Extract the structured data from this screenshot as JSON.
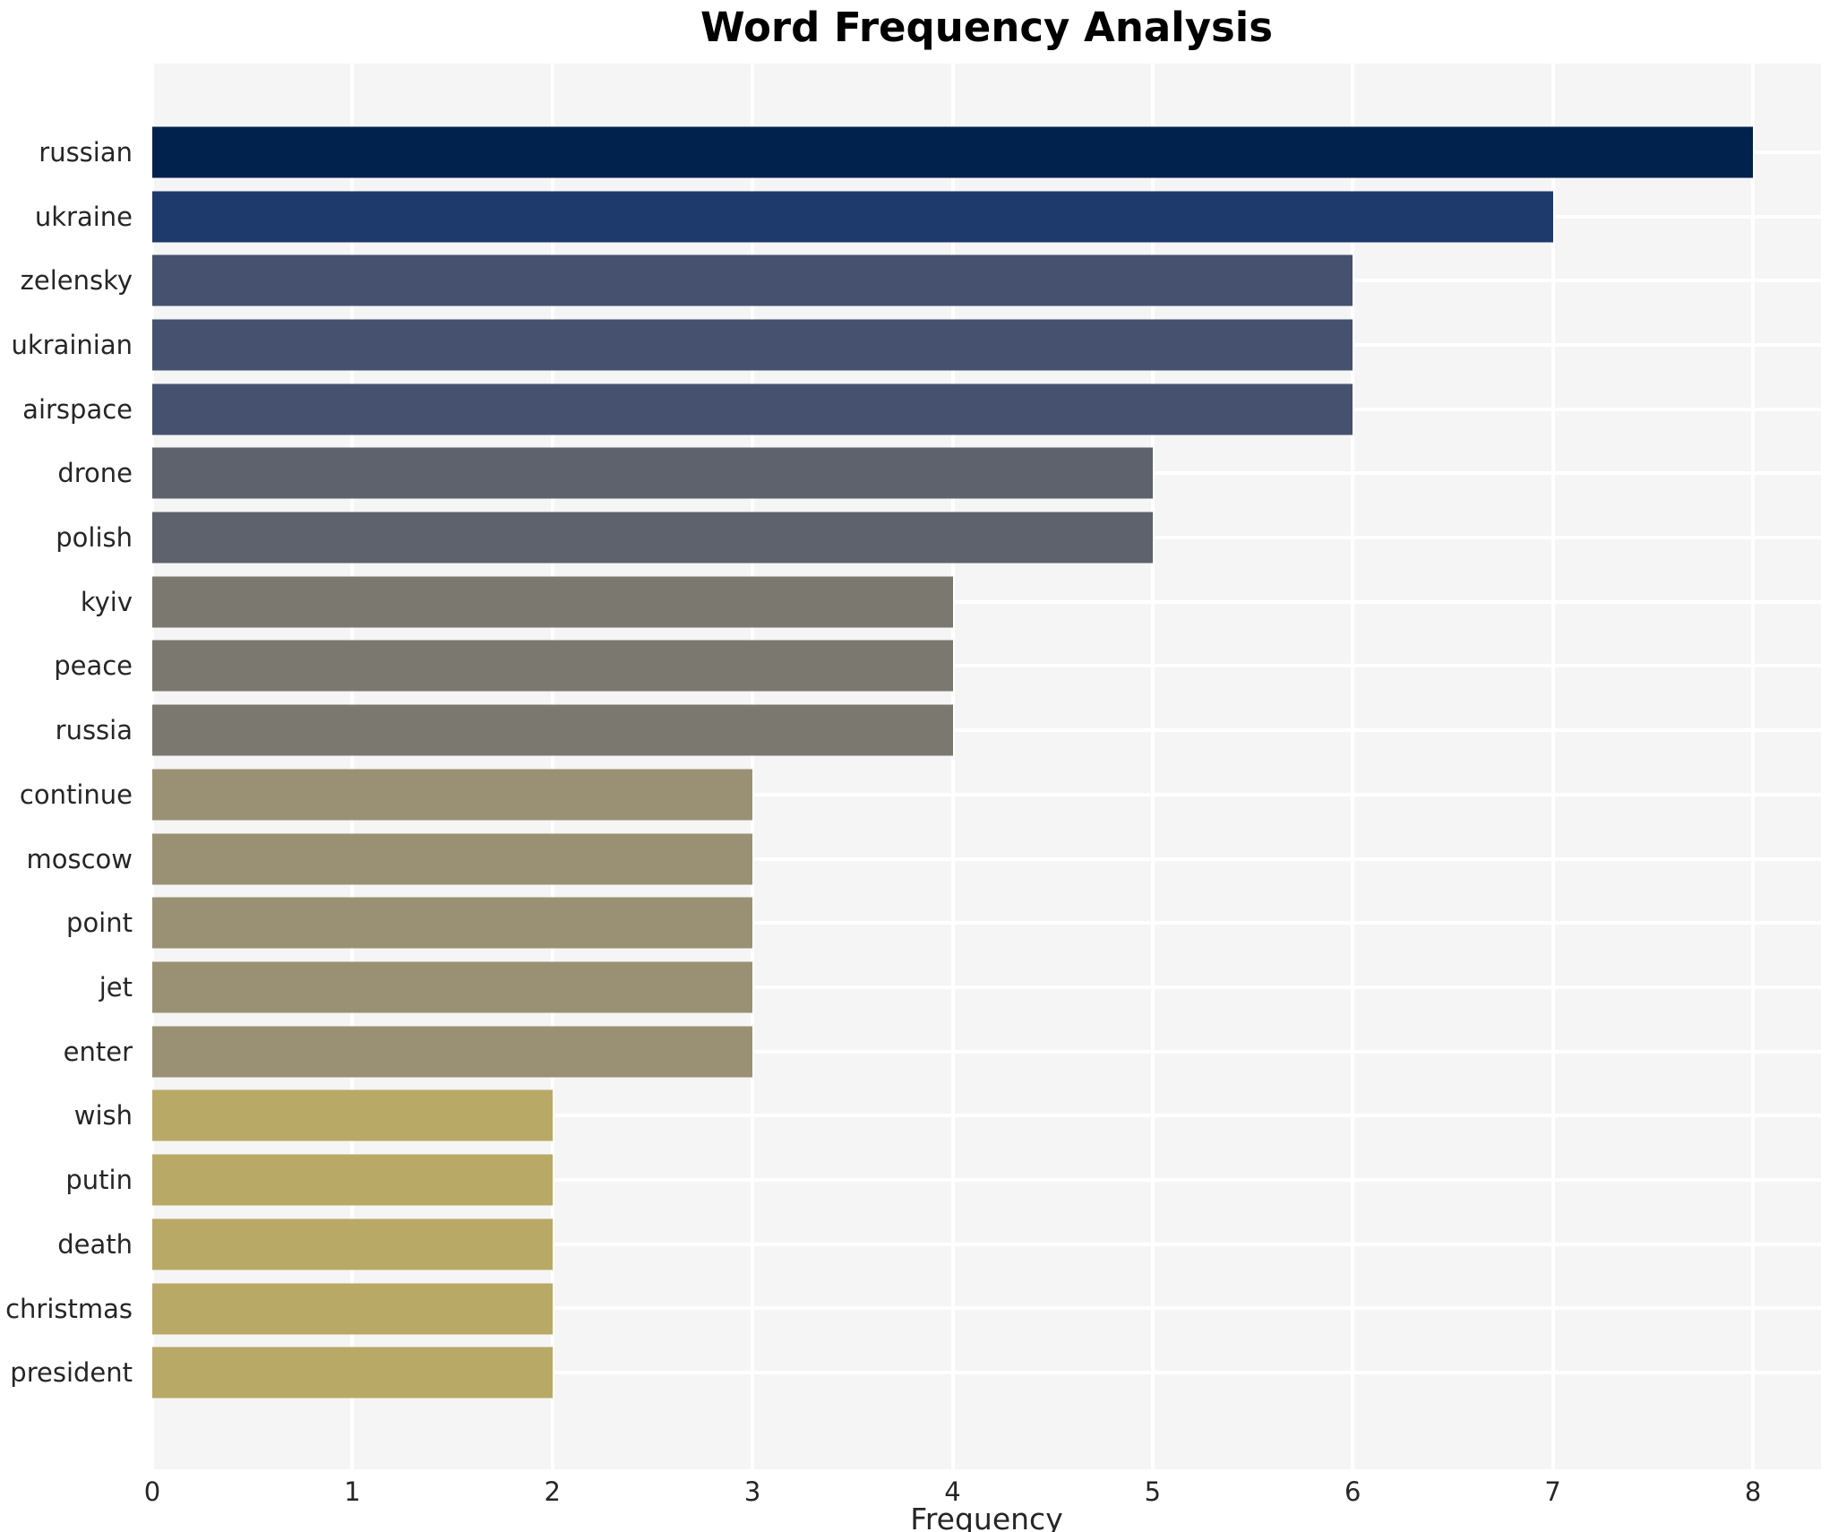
{
  "page": {
    "background": "#ffffff"
  },
  "chart_data": {
    "type": "bar",
    "orientation": "horizontal",
    "title": "Word Frequency Analysis",
    "xlabel": "Frequency",
    "ylabel": "",
    "categories": [
      "russian",
      "ukraine",
      "zelensky",
      "ukrainian",
      "airspace",
      "drone",
      "polish",
      "kyiv",
      "peace",
      "russia",
      "continue",
      "moscow",
      "point",
      "jet",
      "enter",
      "wish",
      "putin",
      "death",
      "christmas",
      "president"
    ],
    "values": [
      8,
      7,
      6,
      6,
      6,
      5,
      5,
      4,
      4,
      4,
      3,
      3,
      3,
      3,
      3,
      2,
      2,
      2,
      2,
      2
    ],
    "bar_colors": [
      "#01224d",
      "#1e3a6c",
      "#45516f",
      "#45516f",
      "#45516f",
      "#5d626c",
      "#5d626c",
      "#7a786f",
      "#7a786f",
      "#7a786f",
      "#9a9174",
      "#9a9174",
      "#9a9174",
      "#9a9174",
      "#9a9174",
      "#b9a966",
      "#b9a966",
      "#b9a966",
      "#b9a966",
      "#b9a966"
    ],
    "x_ticks": [
      "0",
      "1",
      "2",
      "3",
      "4",
      "5",
      "6",
      "7",
      "8"
    ],
    "x_tick_values": [
      0,
      1,
      2,
      3,
      4,
      5,
      6,
      7,
      8
    ],
    "xlim": [
      0,
      8.34
    ],
    "grid": {
      "panel_bg": "#f5f5f6",
      "grid_line_color": "#ffffff",
      "vertical_gridlines": true,
      "horizontal_gridlines": true
    },
    "legend": "none",
    "styles": {
      "title_color": "#000000",
      "axis_text_color": "#262626"
    }
  }
}
